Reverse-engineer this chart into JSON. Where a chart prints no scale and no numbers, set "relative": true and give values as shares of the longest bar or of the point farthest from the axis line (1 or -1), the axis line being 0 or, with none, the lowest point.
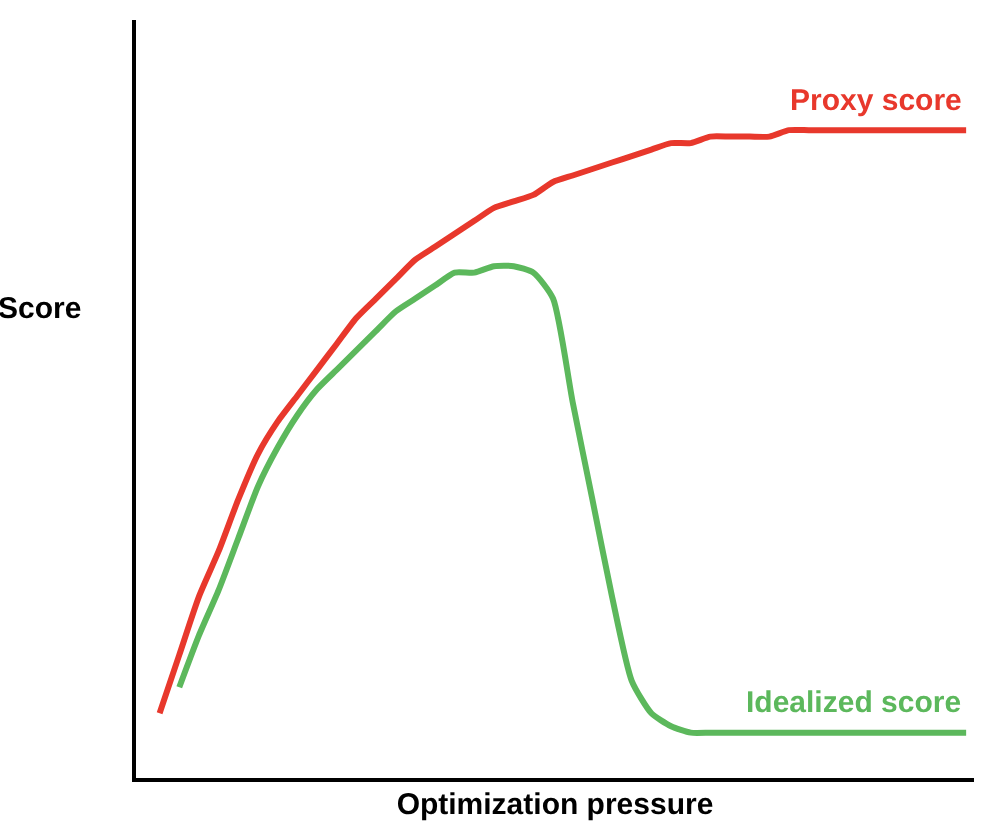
{
  "chart_data": {
    "type": "line",
    "relative": true,
    "xlabel": "Optimization pressure",
    "ylabel": "Score",
    "legend": false,
    "marker": "none",
    "line_style": "solid",
    "categories": [
      null,
      null,
      null,
      null,
      null,
      null,
      null,
      null,
      null,
      null,
      null,
      null,
      null,
      null,
      null,
      null,
      null,
      null,
      null,
      null,
      null,
      null,
      null,
      null,
      null,
      null,
      null,
      null,
      null,
      null,
      null,
      null,
      null,
      null,
      null,
      null,
      null,
      null,
      null,
      null,
      null,
      null
    ],
    "series": [
      {
        "name": "Proxy score",
        "color": "#e8382c",
        "values": [
          0.1,
          0.19,
          0.28,
          0.35,
          0.43,
          0.5,
          0.55,
          0.59,
          0.63,
          0.67,
          0.71,
          0.74,
          0.77,
          0.8,
          0.82,
          0.84,
          0.86,
          0.88,
          0.89,
          0.9,
          0.92,
          0.93,
          0.94,
          0.95,
          0.96,
          0.97,
          0.98,
          0.98,
          0.99,
          0.99,
          0.99,
          0.99,
          1,
          1,
          1,
          1,
          1,
          1,
          1,
          1,
          1,
          1
        ]
      },
      {
        "name": "Idealized score",
        "color": "#5cb85c",
        "values": [
          null,
          0.14,
          0.22,
          0.29,
          0.37,
          0.45,
          0.51,
          0.56,
          0.6,
          0.63,
          0.66,
          0.69,
          0.72,
          0.74,
          0.76,
          0.78,
          0.78,
          0.79,
          0.79,
          0.78,
          0.74,
          0.58,
          0.43,
          0.28,
          0.15,
          0.1,
          0.08,
          0.07,
          0.07,
          0.07,
          0.07,
          0.07,
          0.07,
          0.07,
          0.07,
          0.07,
          0.07,
          0.07,
          0.07,
          0.07,
          0.07,
          0.07
        ]
      }
    ]
  }
}
